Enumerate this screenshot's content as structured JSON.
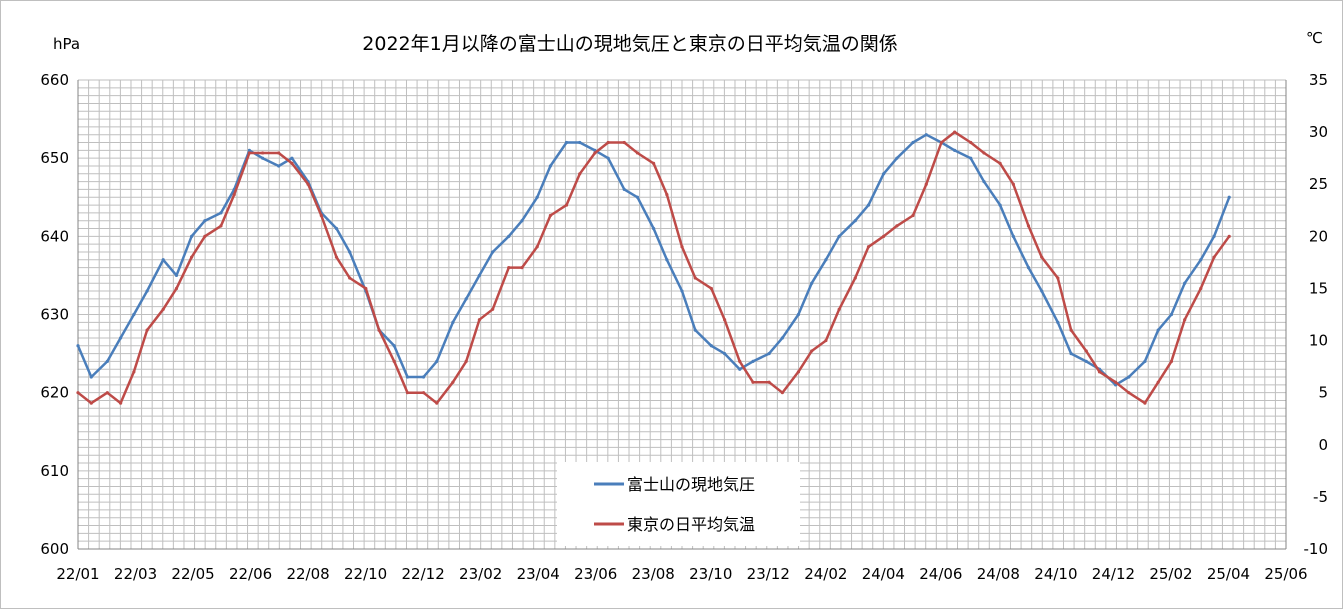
{
  "chart_data": {
    "type": "line",
    "title": "2022年1月以降の富士山の現地気圧と東京の日平均気温の関係",
    "y_left_unit": "hPa",
    "y_right_unit": "℃",
    "ylim_left": [
      600,
      660
    ],
    "ylim_right": [
      -10,
      35
    ],
    "yticks_left": [
      "600",
      "610",
      "620",
      "630",
      "640",
      "650",
      "660"
    ],
    "yticks_right": [
      "-10",
      "-5",
      "0",
      "5",
      "10",
      "15",
      "20",
      "25",
      "30",
      "35"
    ],
    "xlim": [
      "2022-01-01",
      "2025-06-30"
    ],
    "xticks": [
      "22/01",
      "22/03",
      "22/05",
      "22/06",
      "22/08",
      "22/10",
      "22/12",
      "23/02",
      "23/04",
      "23/06",
      "23/08",
      "23/10",
      "23/12",
      "24/02",
      "24/04",
      "24/06",
      "24/08",
      "24/10",
      "24/12",
      "25/02",
      "25/04",
      "25/06"
    ],
    "grid": true,
    "legend_placement": "bottom-center",
    "series": [
      {
        "name": "富士山の現地気圧",
        "axis": "left",
        "color": "#4A7EBB",
        "x": [
          "2022-01-01",
          "2022-01-15",
          "2022-02-01",
          "2022-02-15",
          "2022-03-01",
          "2022-03-15",
          "2022-04-01",
          "2022-04-15",
          "2022-05-01",
          "2022-05-15",
          "2022-06-01",
          "2022-06-15",
          "2022-07-01",
          "2022-07-15",
          "2022-08-01",
          "2022-08-15",
          "2022-09-01",
          "2022-09-15",
          "2022-10-01",
          "2022-10-15",
          "2022-11-01",
          "2022-11-15",
          "2022-12-01",
          "2022-12-15",
          "2023-01-01",
          "2023-01-15",
          "2023-02-01",
          "2023-02-15",
          "2023-03-01",
          "2023-03-15",
          "2023-04-01",
          "2023-04-15",
          "2023-05-01",
          "2023-05-15",
          "2023-06-01",
          "2023-06-15",
          "2023-07-01",
          "2023-07-15",
          "2023-08-01",
          "2023-08-15",
          "2023-09-01",
          "2023-09-15",
          "2023-10-01",
          "2023-10-15",
          "2023-11-01",
          "2023-11-15",
          "2023-12-01",
          "2023-12-15",
          "2024-01-01",
          "2024-01-15",
          "2024-02-01",
          "2024-02-15",
          "2024-03-01",
          "2024-03-15",
          "2024-04-01",
          "2024-04-15",
          "2024-05-01",
          "2024-05-15",
          "2024-06-01",
          "2024-06-15",
          "2024-07-01",
          "2024-07-15",
          "2024-08-01",
          "2024-08-15",
          "2024-09-01",
          "2024-09-15",
          "2024-10-01",
          "2024-10-15",
          "2024-11-01",
          "2024-11-15",
          "2024-12-01",
          "2024-12-15",
          "2025-01-01",
          "2025-01-15",
          "2025-02-01",
          "2025-02-15",
          "2025-03-01",
          "2025-03-15",
          "2025-04-01",
          "2025-04-15",
          "2025-05-01"
        ],
        "values": [
          626,
          622,
          624,
          627,
          630,
          633,
          637,
          635,
          640,
          642,
          643,
          646,
          651,
          650,
          649,
          650,
          647,
          643,
          641,
          638,
          633,
          628,
          626,
          622,
          622,
          624,
          629,
          632,
          635,
          638,
          640,
          642,
          645,
          649,
          652,
          652,
          651,
          650,
          646,
          645,
          641,
          637,
          633,
          628,
          626,
          625,
          623,
          624,
          625,
          627,
          630,
          634,
          637,
          640,
          642,
          644,
          648,
          650,
          652,
          653,
          652,
          651,
          650,
          647,
          644,
          640,
          636,
          633,
          629,
          625,
          624,
          623,
          621,
          622,
          624,
          628,
          630,
          634,
          637,
          640,
          645
        ]
      },
      {
        "name": "東京の日平均気温",
        "axis": "right",
        "color": "#BE4B48",
        "x": [
          "2022-01-01",
          "2022-01-15",
          "2022-02-01",
          "2022-02-15",
          "2022-03-01",
          "2022-03-15",
          "2022-04-01",
          "2022-04-15",
          "2022-05-01",
          "2022-05-15",
          "2022-06-01",
          "2022-06-15",
          "2022-07-01",
          "2022-07-15",
          "2022-08-01",
          "2022-08-15",
          "2022-09-01",
          "2022-09-15",
          "2022-10-01",
          "2022-10-15",
          "2022-11-01",
          "2022-11-15",
          "2022-12-01",
          "2022-12-15",
          "2023-01-01",
          "2023-01-15",
          "2023-02-01",
          "2023-02-15",
          "2023-03-01",
          "2023-03-15",
          "2023-04-01",
          "2023-04-15",
          "2023-05-01",
          "2023-05-15",
          "2023-06-01",
          "2023-06-15",
          "2023-07-01",
          "2023-07-15",
          "2023-08-01",
          "2023-08-15",
          "2023-09-01",
          "2023-09-15",
          "2023-10-01",
          "2023-10-15",
          "2023-11-01",
          "2023-11-15",
          "2023-12-01",
          "2023-12-15",
          "2024-01-01",
          "2024-01-15",
          "2024-02-01",
          "2024-02-15",
          "2024-03-01",
          "2024-03-15",
          "2024-04-01",
          "2024-04-15",
          "2024-05-01",
          "2024-05-15",
          "2024-06-01",
          "2024-06-15",
          "2024-07-01",
          "2024-07-15",
          "2024-08-01",
          "2024-08-15",
          "2024-09-01",
          "2024-09-15",
          "2024-10-01",
          "2024-10-15",
          "2024-11-01",
          "2024-11-15",
          "2024-12-01",
          "2024-12-15",
          "2025-01-01",
          "2025-01-15",
          "2025-02-01",
          "2025-02-15",
          "2025-03-01",
          "2025-03-15",
          "2025-04-01",
          "2025-04-15",
          "2025-05-01"
        ],
        "values": [
          5,
          4,
          5,
          4,
          7,
          11,
          13,
          15,
          18,
          20,
          21,
          24,
          28,
          28,
          28,
          27,
          25,
          22,
          18,
          16,
          15,
          11,
          8,
          5,
          5,
          4,
          6,
          8,
          12,
          13,
          17,
          17,
          19,
          22,
          23,
          26,
          28,
          29,
          29,
          28,
          27,
          24,
          19,
          16,
          15,
          12,
          8,
          6,
          6,
          5,
          7,
          9,
          10,
          13,
          16,
          19,
          20,
          21,
          22,
          25,
          29,
          30,
          29,
          28,
          27,
          25,
          21,
          18,
          16,
          11,
          9,
          7,
          6,
          5,
          4,
          6,
          8,
          12,
          15,
          18,
          20
        ]
      }
    ]
  }
}
